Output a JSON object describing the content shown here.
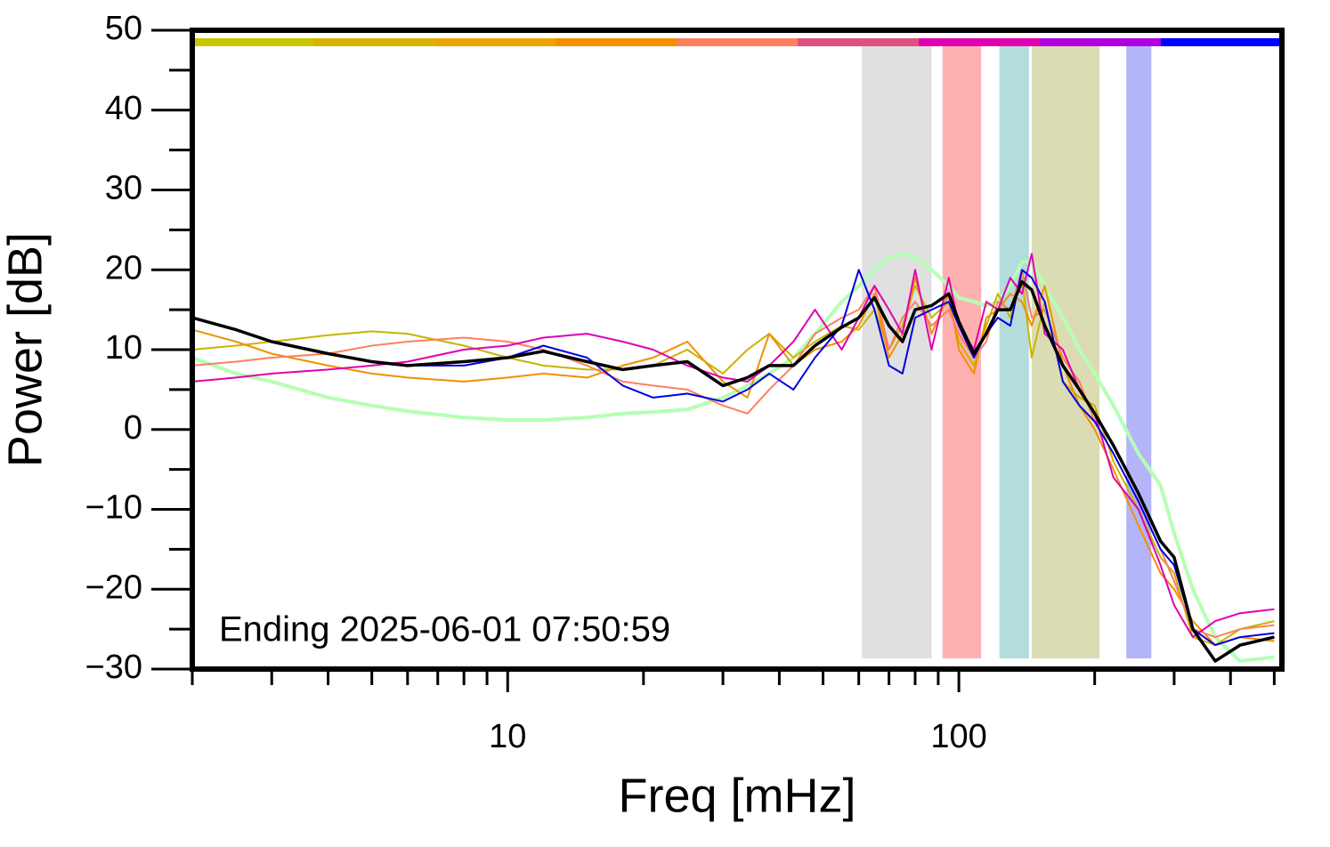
{
  "chart_data": {
    "type": "line",
    "x_label": "Freq [mHz]",
    "y_label": "Power [dB]",
    "annotation": "Ending 2025-06-01 07:50:59",
    "xscale": "log",
    "xlim": [
      2,
      520
    ],
    "ylim": [
      -30,
      50
    ],
    "xticks": [
      10,
      100
    ],
    "xminor_ticks": [
      2,
      3,
      4,
      5,
      6,
      7,
      8,
      9,
      20,
      30,
      40,
      50,
      60,
      70,
      80,
      90,
      200,
      300,
      400,
      500
    ],
    "yticks": [
      {
        "value": -30,
        "label": "−30"
      },
      {
        "value": -20,
        "label": "−20"
      },
      {
        "value": -10,
        "label": "−10"
      },
      0,
      10,
      20,
      30,
      40,
      50
    ],
    "yminor_ticks": [
      -25,
      -15,
      -5,
      5,
      15,
      25,
      35,
      45
    ],
    "top_bar_colors": [
      "#c8c800",
      "#d8b400",
      "#eca400",
      "#f49000",
      "#ff8060",
      "#e05080",
      "#e000b0",
      "#b000e0",
      "#0000ff"
    ],
    "bands": [
      {
        "x0": 61,
        "x1": 87,
        "color": "#e0e0e0"
      },
      {
        "x0": 92,
        "x1": 112,
        "color": "#ffb0b0"
      },
      {
        "x0": 123,
        "x1": 143,
        "color": "#b4dcdc"
      },
      {
        "x0": 145,
        "x1": 205,
        "color": "#dcdcb4"
      },
      {
        "x0": 235,
        "x1": 267,
        "color": "#b4b4f8"
      }
    ],
    "x": [
      2,
      2.5,
      3,
      4,
      5,
      6,
      8,
      10,
      12,
      15,
      18,
      21,
      25,
      30,
      34,
      38,
      43,
      48,
      55,
      60,
      65,
      70,
      75,
      80,
      87,
      95,
      100,
      108,
      115,
      122,
      130,
      138,
      145,
      155,
      170,
      185,
      200,
      220,
      250,
      280,
      300,
      330,
      370,
      420,
      500
    ],
    "series": [
      {
        "color": "#b4ffb4",
        "width": 4,
        "values": [
          9,
          7,
          6,
          4,
          3,
          2.3,
          1.5,
          1.2,
          1.2,
          1.5,
          2,
          2.2,
          2.5,
          4,
          5.5,
          7,
          9,
          12,
          16,
          18,
          20,
          21.5,
          22,
          21.5,
          20,
          18,
          16.5,
          16,
          15.5,
          16,
          18,
          21,
          21,
          18,
          14,
          10,
          7,
          3,
          -3,
          -7,
          -13,
          -20,
          -26,
          -29,
          -28.5
        ]
      },
      {
        "color": "#c8b400",
        "width": 2,
        "values": [
          10,
          10.5,
          11,
          11.8,
          12.3,
          12,
          10.5,
          9,
          8,
          7.5,
          7.5,
          8,
          10,
          7,
          10,
          12,
          9,
          11,
          13,
          12.5,
          15,
          10,
          13,
          18,
          14,
          16,
          11,
          8,
          13,
          17,
          14,
          19,
          9,
          16,
          6,
          4,
          3,
          -4,
          -10,
          -16,
          -18,
          -26,
          -27,
          -25,
          -24
        ]
      },
      {
        "color": "#f09000",
        "width": 2,
        "values": [
          12.5,
          11,
          9.5,
          8,
          7,
          6.5,
          6,
          6.5,
          7,
          6.5,
          8,
          9,
          11,
          6,
          4,
          12,
          8,
          10,
          11,
          13,
          17,
          9,
          12,
          19,
          12,
          17,
          10,
          7,
          14,
          15,
          17,
          16,
          13,
          18,
          8,
          3,
          0,
          -5,
          -12,
          -18,
          -20,
          -24,
          -27,
          -26,
          -26.5
        ]
      },
      {
        "color": "#ff7f60",
        "width": 2,
        "values": [
          8,
          8.5,
          9,
          9.5,
          10.5,
          11,
          11.5,
          11,
          10,
          8,
          6,
          5.5,
          5,
          3,
          2,
          5,
          8,
          12,
          14,
          15,
          18,
          10,
          14,
          16,
          13,
          15,
          12,
          9,
          11,
          16,
          15,
          20,
          14,
          15,
          9,
          6,
          1,
          -3,
          -9,
          -15,
          -19,
          -25,
          -26,
          -25,
          -24.5
        ]
      },
      {
        "color": "#e000b0",
        "width": 2,
        "values": [
          6,
          6.5,
          7,
          7.5,
          8,
          8.5,
          10,
          10.5,
          11.5,
          12,
          11,
          10,
          8,
          6.5,
          6,
          8,
          11,
          15,
          10,
          14,
          18,
          15,
          12,
          20,
          10,
          19,
          13,
          10,
          16,
          15,
          19,
          17,
          22,
          12,
          10,
          5,
          2,
          -6,
          -10,
          -17,
          -22,
          -26,
          -24,
          -23,
          -22.5
        ]
      },
      {
        "color": "#0000e0",
        "width": 2,
        "values": [
          14,
          12.5,
          11,
          9.5,
          8.5,
          8,
          8,
          9,
          10.5,
          9,
          5.5,
          4,
          4.5,
          3.5,
          5,
          7,
          5,
          9,
          13,
          20,
          15,
          8,
          7,
          14,
          15,
          16,
          13,
          9,
          12,
          14,
          13,
          20,
          19,
          16,
          6,
          3,
          1,
          -3,
          -9,
          -15,
          -17,
          -25,
          -27,
          -26,
          -25.5
        ]
      },
      {
        "color": "#000000",
        "width": 3.5,
        "values": [
          14,
          12.5,
          11,
          9.5,
          8.5,
          8,
          8.5,
          9,
          9.8,
          8.5,
          7.5,
          8,
          8.5,
          5.5,
          6.5,
          8,
          8,
          10.5,
          12.8,
          14,
          16.5,
          13,
          11,
          15,
          15.5,
          17,
          13.5,
          9.5,
          12,
          15,
          15,
          18.5,
          17.5,
          13,
          8,
          5,
          2,
          -2,
          -8,
          -14,
          -16,
          -25,
          -29,
          -27,
          -26
        ]
      }
    ]
  }
}
